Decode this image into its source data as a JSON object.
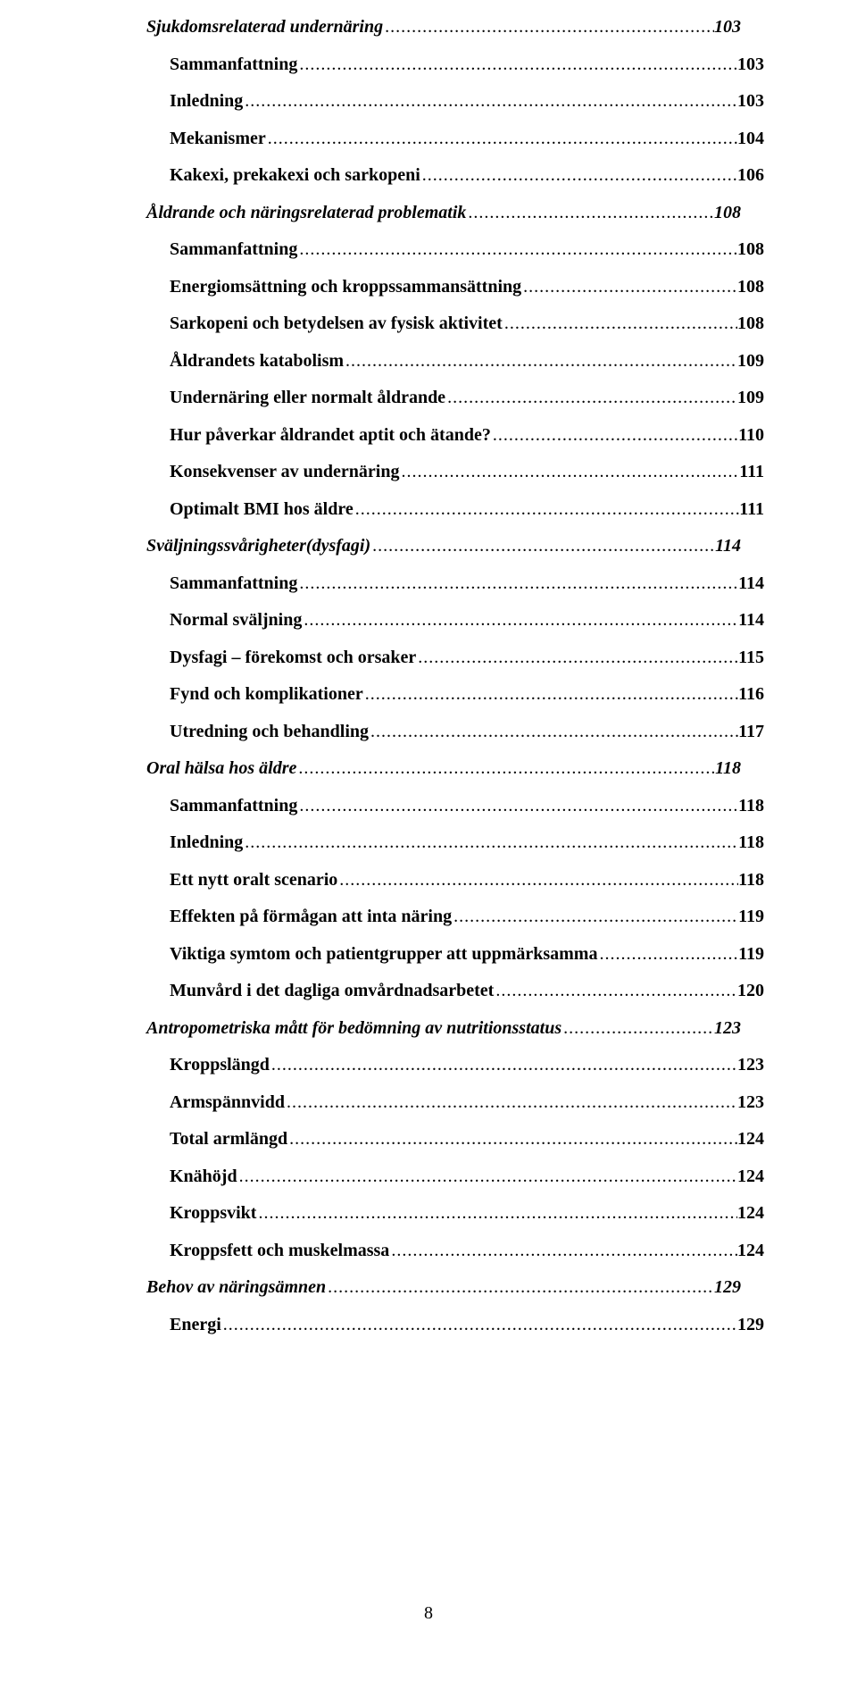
{
  "page_footer_number": "8",
  "toc": [
    {
      "level": 1,
      "label": "Sjukdomsrelaterad undernäring",
      "page": "103"
    },
    {
      "level": 2,
      "label": "Sammanfattning",
      "page": "103"
    },
    {
      "level": 2,
      "label": "Inledning",
      "page": "103"
    },
    {
      "level": 2,
      "label": "Mekanismer",
      "page": "104"
    },
    {
      "level": 2,
      "label": "Kakexi, prekakexi och sarkopeni",
      "page": "106"
    },
    {
      "level": 1,
      "label": "Åldrande och näringsrelaterad problematik",
      "page": "108"
    },
    {
      "level": 2,
      "label": "Sammanfattning",
      "page": "108"
    },
    {
      "level": 2,
      "label": "Energiomsättning och kroppssammansättning",
      "page": "108"
    },
    {
      "level": 2,
      "label": "Sarkopeni och betydelsen av fysisk aktivitet",
      "page": "108"
    },
    {
      "level": 2,
      "label": "Åldrandets katabolism",
      "page": "109"
    },
    {
      "level": 2,
      "label": "Undernäring eller normalt åldrande",
      "page": "109"
    },
    {
      "level": 2,
      "label": "Hur påverkar åldrandet aptit och ätande?",
      "page": "110"
    },
    {
      "level": 2,
      "label": "Konsekvenser av undernäring",
      "page": "111"
    },
    {
      "level": 2,
      "label": "Optimalt BMI hos äldre",
      "page": "111"
    },
    {
      "level": 1,
      "label": "Sväljningssvårigheter(dysfagi)",
      "page": "114"
    },
    {
      "level": 2,
      "label": "Sammanfattning",
      "page": "114"
    },
    {
      "level": 2,
      "label": "Normal sväljning",
      "page": "114"
    },
    {
      "level": 2,
      "label": "Dysfagi – förekomst och orsaker",
      "page": "115"
    },
    {
      "level": 2,
      "label": "Fynd och komplikationer",
      "page": "116"
    },
    {
      "level": 2,
      "label": "Utredning och behandling",
      "page": "117"
    },
    {
      "level": 1,
      "label": "Oral hälsa hos äldre",
      "page": "118"
    },
    {
      "level": 2,
      "label": "Sammanfattning",
      "page": "118"
    },
    {
      "level": 2,
      "label": "Inledning",
      "page": "118"
    },
    {
      "level": 2,
      "label": "Ett nytt oralt scenario",
      "page": "118"
    },
    {
      "level": 2,
      "label": "Effekten på förmågan att inta näring",
      "page": "119"
    },
    {
      "level": 2,
      "label": "Viktiga symtom och patientgrupper  att uppmärksamma",
      "page": "119"
    },
    {
      "level": 2,
      "label": "Munvård i det dagliga omvårdnadsarbetet",
      "page": "120"
    },
    {
      "level": 1,
      "label": "Antropometriska mått för bedömning av nutritionsstatus",
      "page": "123"
    },
    {
      "level": 2,
      "label": "Kroppslängd",
      "page": "123"
    },
    {
      "level": 2,
      "label": "Armspännvidd",
      "page": "123"
    },
    {
      "level": 2,
      "label": "Total armlängd",
      "page": "124"
    },
    {
      "level": 2,
      "label": "Knähöjd",
      "page": "124"
    },
    {
      "level": 2,
      "label": "Kroppsvikt",
      "page": "124"
    },
    {
      "level": 2,
      "label": "Kroppsfett och muskelmassa",
      "page": "124"
    },
    {
      "level": 1,
      "label": "Behov av näringsämnen",
      "page": "129"
    },
    {
      "level": 2,
      "label": "Energi",
      "page": "129"
    }
  ]
}
